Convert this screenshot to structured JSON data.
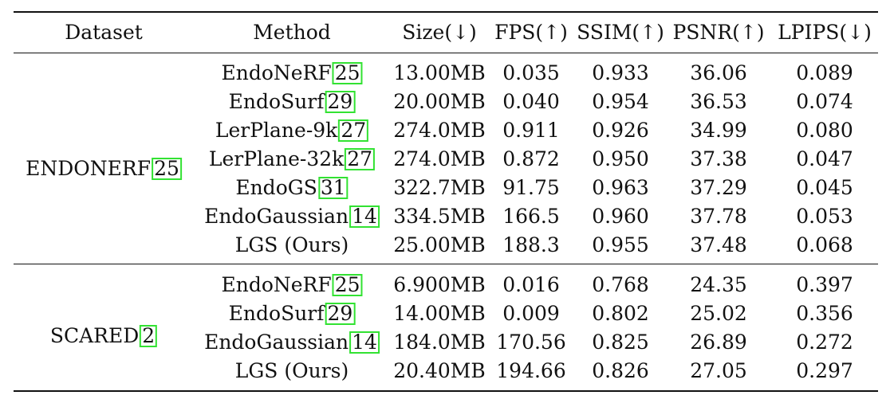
{
  "table": {
    "headers": [
      "Dataset",
      "Method",
      "Size(↓)",
      "FPS(↑)",
      "SSIM(↑)",
      "PSNR(↑)",
      "LPIPS(↓)"
    ],
    "groups": [
      {
        "dataset": "ENDONERF",
        "dataset_cite": "25",
        "rows": [
          {
            "method": "EndoNeRF",
            "cite": "25",
            "size": "13.00MB",
            "fps": "0.035",
            "ssim": "0.933",
            "psnr": "36.06",
            "lpips": "0.089"
          },
          {
            "method": "EndoSurf",
            "cite": "29",
            "size": "20.00MB",
            "fps": "0.040",
            "ssim": "0.954",
            "psnr": "36.53",
            "lpips": "0.074"
          },
          {
            "method": "LerPlane-9k",
            "cite": "27",
            "size": "274.0MB",
            "fps": "0.911",
            "ssim": "0.926",
            "psnr": "34.99",
            "lpips": "0.080"
          },
          {
            "method": "LerPlane-32k",
            "cite": "27",
            "size": "274.0MB",
            "fps": "0.872",
            "ssim": "0.950",
            "psnr": "37.38",
            "lpips": "0.047"
          },
          {
            "method": "EndoGS",
            "cite": "31",
            "size": "322.7MB",
            "fps": "91.75",
            "ssim": "0.963",
            "psnr": "37.29",
            "lpips": "0.045"
          },
          {
            "method": "EndoGaussian",
            "cite": "14",
            "size": "334.5MB",
            "fps": "166.5",
            "ssim": "0.960",
            "psnr": "37.78",
            "lpips": "0.053"
          },
          {
            "method": "LGS (Ours)",
            "cite": "",
            "size": "25.00MB",
            "fps": "188.3",
            "ssim": "0.955",
            "psnr": "37.48",
            "lpips": "0.068"
          }
        ]
      },
      {
        "dataset": "SCARED",
        "dataset_cite": "2",
        "rows": [
          {
            "method": "EndoNeRF",
            "cite": "25",
            "size": "6.900MB",
            "fps": "0.016",
            "ssim": "0.768",
            "psnr": "24.35",
            "lpips": "0.397"
          },
          {
            "method": "EndoSurf",
            "cite": "29",
            "size": "14.00MB",
            "fps": "0.009",
            "ssim": "0.802",
            "psnr": "25.02",
            "lpips": "0.356"
          },
          {
            "method": "EndoGaussian",
            "cite": "14",
            "size": "184.0MB",
            "fps": "170.56",
            "ssim": "0.825",
            "psnr": "26.89",
            "lpips": "0.272"
          },
          {
            "method": "LGS (Ours)",
            "cite": "",
            "size": "20.40MB",
            "fps": "194.66",
            "ssim": "0.826",
            "psnr": "27.05",
            "lpips": "0.297"
          }
        ]
      }
    ]
  }
}
